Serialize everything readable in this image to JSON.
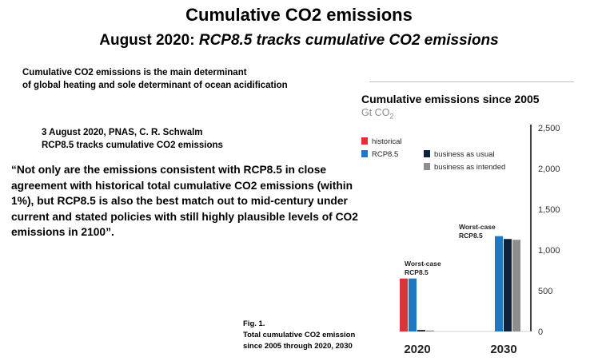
{
  "slide": {
    "title": "Cumulative CO2 emissions",
    "subtitle_lead": "August 2020: ",
    "subtitle_italic": "RCP8.5 tracks cumulative CO2 emissions",
    "intro_line1": "Cumulative CO2 emissions is the main determinant",
    "intro_line2": "of global heating and sole determinant of ocean acidification",
    "citation_line1": "3 August 2020, PNAS, C. R. Schwalm",
    "citation_line2": "RCP8.5 tracks cumulative CO2 emissions",
    "quote": "“Not only are the emissions consistent with RCP8.5 in close agreement with historical total cumulative CO2 emissions (within 1%), but RCP8.5 is also the best match out to mid-century under current and stated policies with still highly plausible levels of CO2 emissions in 2100”.",
    "fig_label": "Fig. 1.",
    "fig_caption_line1": "Total cumulative CO2 emission",
    "fig_caption_line2": "since 2005 through 2020, 2030"
  },
  "chart_data": {
    "type": "bar",
    "title": "Cumulative emissions since 2005",
    "unit": "Gt CO",
    "unit_sub": "2",
    "categories": [
      "2020",
      "2030"
    ],
    "series": [
      {
        "name": "historical",
        "color": "#d9343a",
        "values": [
          650,
          null
        ]
      },
      {
        "name": "RCP8.5",
        "color": "#1f78c1",
        "values": [
          650,
          1170
        ]
      },
      {
        "name": "business as usual",
        "color": "#10213a",
        "values": [
          18,
          1135
        ]
      },
      {
        "name": "business as intended",
        "color": "#8e8e8e",
        "values": [
          12,
          1125
        ]
      }
    ],
    "yticks": [
      "0",
      "500",
      "1,000",
      "1,500",
      "2,000",
      "2,500"
    ],
    "ylim": [
      0,
      2500
    ],
    "annotations": [
      {
        "category": "2020",
        "line1": "Worst-case",
        "line2": "RCP8.5"
      },
      {
        "category": "2030",
        "line1": "Worst-case",
        "line2": "RCP8.5"
      }
    ],
    "legend_position": "top-left",
    "grid": false
  }
}
